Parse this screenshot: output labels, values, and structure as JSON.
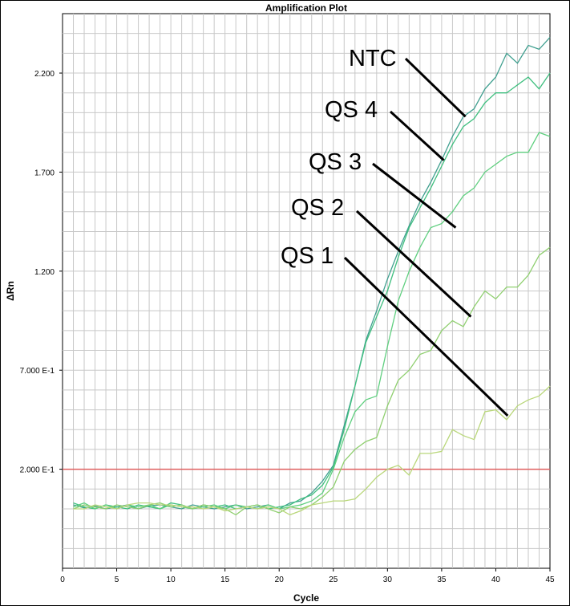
{
  "chart_data": {
    "type": "line",
    "title": "Amplification Plot",
    "xlabel": "Cycle",
    "ylabel": "ΔRn",
    "xlim": [
      0,
      45
    ],
    "ylim": [
      -0.3,
      2.5
    ],
    "x_ticks": [
      0,
      5,
      10,
      15,
      20,
      25,
      30,
      35,
      40,
      45
    ],
    "y_ticks": [
      {
        "value": 0.2,
        "label": "2.000 E-1"
      },
      {
        "value": 0.7,
        "label": "7.000 E-1"
      },
      {
        "value": 1.2,
        "label": "1.200"
      },
      {
        "value": 1.7,
        "label": "1.700"
      },
      {
        "value": 2.2,
        "label": "2.200"
      }
    ],
    "grid": true,
    "threshold": {
      "value": 0.2,
      "color": "#e06060"
    },
    "x": [
      1,
      2,
      3,
      4,
      5,
      6,
      7,
      8,
      9,
      10,
      11,
      12,
      13,
      14,
      15,
      16,
      17,
      18,
      19,
      20,
      21,
      22,
      23,
      24,
      25,
      26,
      27,
      28,
      29,
      30,
      31,
      32,
      33,
      34,
      35,
      36,
      37,
      38,
      39,
      40,
      41,
      42,
      43,
      44,
      45
    ],
    "series": [
      {
        "name": "NTC",
        "color": "#3f9f8f",
        "label_anchor": {
          "x": 37.2,
          "y": 1.98
        },
        "values": [
          0.02,
          0.005,
          0.015,
          0.0,
          0.01,
          0.02,
          0.0,
          0.015,
          0.02,
          0.01,
          0.0,
          0.02,
          0.01,
          0.0,
          0.01,
          0.02,
          0.0,
          0.01,
          0.02,
          0.0,
          0.03,
          0.04,
          0.08,
          0.14,
          0.22,
          0.42,
          0.62,
          0.85,
          1.0,
          1.16,
          1.3,
          1.43,
          1.55,
          1.65,
          1.76,
          1.88,
          1.98,
          2.02,
          2.12,
          2.18,
          2.3,
          2.25,
          2.34,
          2.32,
          2.38
        ]
      },
      {
        "name": "QS 4",
        "color": "#3fbf7f",
        "label_anchor": {
          "x": 35.2,
          "y": 1.76
        },
        "values": [
          0.03,
          0.01,
          0.0,
          0.02,
          0.01,
          0.0,
          0.02,
          0.01,
          0.0,
          0.03,
          0.02,
          0.0,
          0.02,
          0.01,
          0.02,
          0.0,
          0.01,
          0.02,
          0.0,
          0.01,
          0.02,
          0.05,
          0.07,
          0.12,
          0.21,
          0.4,
          0.62,
          0.84,
          0.97,
          1.1,
          1.27,
          1.42,
          1.52,
          1.62,
          1.73,
          1.84,
          1.93,
          1.97,
          2.05,
          2.1,
          2.1,
          2.14,
          2.18,
          2.12,
          2.2
        ]
      },
      {
        "name": "QS 3",
        "color": "#5fcf7f",
        "label_anchor": {
          "x": 36.3,
          "y": 1.42
        },
        "values": [
          0.01,
          0.03,
          0.0,
          0.02,
          0.0,
          0.02,
          0.01,
          0.02,
          0.0,
          0.02,
          0.01,
          0.0,
          0.01,
          0.02,
          0.0,
          0.02,
          0.01,
          0.0,
          0.02,
          0.0,
          0.01,
          0.02,
          0.04,
          0.08,
          0.2,
          0.36,
          0.49,
          0.55,
          0.57,
          0.82,
          1.05,
          1.2,
          1.32,
          1.42,
          1.44,
          1.5,
          1.58,
          1.62,
          1.7,
          1.74,
          1.78,
          1.8,
          1.8,
          1.9,
          1.88
        ]
      },
      {
        "name": "QS 2",
        "color": "#8fcf6f",
        "label_anchor": {
          "x": 37.7,
          "y": 0.97
        },
        "values": [
          0.0,
          0.02,
          0.01,
          0.0,
          0.02,
          0.01,
          0.0,
          0.02,
          0.03,
          0.01,
          0.02,
          0.0,
          0.02,
          0.01,
          0.0,
          -0.03,
          0.01,
          0.02,
          0.0,
          -0.02,
          0.01,
          0.0,
          0.02,
          0.06,
          0.11,
          0.24,
          0.3,
          0.34,
          0.36,
          0.52,
          0.65,
          0.7,
          0.78,
          0.8,
          0.9,
          0.95,
          0.92,
          1.02,
          1.1,
          1.06,
          1.12,
          1.12,
          1.18,
          1.28,
          1.32
        ]
      },
      {
        "name": "QS 1",
        "color": "#b9d77a",
        "label_anchor": {
          "x": 41.1,
          "y": 0.47
        },
        "values": [
          0.0,
          0.0,
          0.02,
          0.01,
          0.0,
          0.02,
          0.03,
          0.03,
          0.02,
          0.02,
          0.01,
          0.01,
          0.0,
          0.01,
          -0.01,
          0.0,
          0.01,
          0.0,
          0.01,
          0.0,
          -0.03,
          -0.01,
          0.02,
          0.03,
          0.04,
          0.04,
          0.05,
          0.1,
          0.16,
          0.2,
          0.22,
          0.17,
          0.28,
          0.28,
          0.29,
          0.4,
          0.37,
          0.35,
          0.49,
          0.5,
          0.45,
          0.52,
          0.55,
          0.57,
          0.62
        ]
      }
    ]
  }
}
